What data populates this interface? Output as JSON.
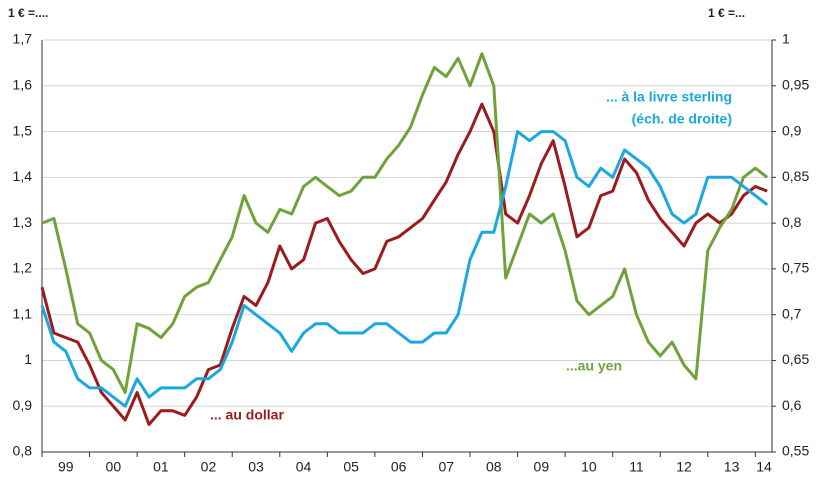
{
  "chart_data": {
    "type": "line",
    "annotations": [
      "1 € =....",
      "1 € =...",
      "(éch. de droite)"
    ],
    "x": [
      1999,
      1999.25,
      1999.5,
      1999.75,
      2000,
      2000.25,
      2000.5,
      2000.75,
      2001,
      2001.25,
      2001.5,
      2001.75,
      2002,
      2002.25,
      2002.5,
      2002.75,
      2003,
      2003.25,
      2003.5,
      2003.75,
      2004,
      2004.25,
      2004.5,
      2004.75,
      2005,
      2005.25,
      2005.5,
      2005.75,
      2006,
      2006.25,
      2006.5,
      2006.75,
      2007,
      2007.25,
      2007.5,
      2007.75,
      2008,
      2008.25,
      2008.5,
      2008.75,
      2009,
      2009.25,
      2009.5,
      2009.75,
      2010,
      2010.25,
      2010.5,
      2010.75,
      2011,
      2011.25,
      2011.5,
      2011.75,
      2012,
      2012.25,
      2012.5,
      2012.75,
      2013,
      2013.25,
      2013.5,
      2013.75,
      2014,
      2014.25
    ],
    "xlim": [
      1999,
      2014.35
    ],
    "xticks": [
      {
        "value": 1999,
        "label": "99"
      },
      {
        "value": 2000,
        "label": "00"
      },
      {
        "value": 2001,
        "label": "01"
      },
      {
        "value": 2002,
        "label": "02"
      },
      {
        "value": 2003,
        "label": "03"
      },
      {
        "value": 2004,
        "label": "04"
      },
      {
        "value": 2005,
        "label": "05"
      },
      {
        "value": 2006,
        "label": "06"
      },
      {
        "value": 2007,
        "label": "07"
      },
      {
        "value": 2008,
        "label": "08"
      },
      {
        "value": 2009,
        "label": "09"
      },
      {
        "value": 2010,
        "label": "10"
      },
      {
        "value": 2011,
        "label": "11"
      },
      {
        "value": 2012,
        "label": "12"
      },
      {
        "value": 2013,
        "label": "13"
      },
      {
        "value": 2014,
        "label": "14"
      }
    ],
    "ylim": [
      0.8,
      1.7
    ],
    "yticks": [
      {
        "value": 0.8,
        "label": "0,8"
      },
      {
        "value": 0.9,
        "label": "0,9"
      },
      1,
      {
        "value": 1.1,
        "label": "1,1"
      },
      {
        "value": 1.2,
        "label": "1,2"
      },
      {
        "value": 1.3,
        "label": "1,3"
      },
      {
        "value": 1.4,
        "label": "1,4"
      },
      {
        "value": 1.5,
        "label": "1,5"
      },
      {
        "value": 1.6,
        "label": "1,6"
      },
      {
        "value": 1.7,
        "label": "1,7"
      }
    ],
    "y2lim": [
      0.55,
      1
    ],
    "y2ticks": [
      {
        "value": 0.55,
        "label": "0,55"
      },
      {
        "value": 0.6,
        "label": "0,6"
      },
      {
        "value": 0.65,
        "label": "0,65"
      },
      {
        "value": 0.7,
        "label": "0,7"
      },
      {
        "value": 0.75,
        "label": "0,75"
      },
      {
        "value": 0.8,
        "label": "0,8"
      },
      {
        "value": 0.85,
        "label": "0,85"
      },
      {
        "value": 0.9,
        "label": "0,9"
      },
      {
        "value": 0.95,
        "label": "0,95"
      },
      1
    ],
    "grid": true,
    "series": [
      {
        "name": "... au dollar",
        "color": "#9b1b1f",
        "values": [
          1.16,
          1.06,
          1.05,
          1.04,
          0.99,
          0.93,
          0.9,
          0.87,
          0.93,
          0.86,
          0.89,
          0.89,
          0.88,
          0.92,
          0.98,
          0.99,
          1.07,
          1.14,
          1.12,
          1.17,
          1.25,
          1.2,
          1.22,
          1.3,
          1.31,
          1.26,
          1.22,
          1.19,
          1.2,
          1.26,
          1.27,
          1.29,
          1.31,
          1.35,
          1.39,
          1.45,
          1.5,
          1.56,
          1.5,
          1.32,
          1.3,
          1.36,
          1.43,
          1.48,
          1.38,
          1.27,
          1.29,
          1.36,
          1.37,
          1.44,
          1.41,
          1.35,
          1.31,
          1.28,
          1.25,
          1.3,
          1.32,
          1.3,
          1.32,
          1.36,
          1.38,
          1.37
        ]
      },
      {
        "name": "...au yen",
        "color": "#6fa33a",
        "values": [
          1.3,
          1.31,
          1.2,
          1.08,
          1.06,
          1.0,
          0.98,
          0.93,
          1.08,
          1.07,
          1.05,
          1.08,
          1.14,
          1.16,
          1.17,
          1.22,
          1.27,
          1.36,
          1.3,
          1.28,
          1.33,
          1.32,
          1.38,
          1.4,
          1.38,
          1.36,
          1.37,
          1.4,
          1.4,
          1.44,
          1.47,
          1.51,
          1.58,
          1.64,
          1.62,
          1.66,
          1.6,
          1.67,
          1.6,
          1.18,
          1.25,
          1.32,
          1.3,
          1.32,
          1.24,
          1.13,
          1.1,
          1.12,
          1.14,
          1.2,
          1.1,
          1.04,
          1.01,
          1.04,
          0.99,
          0.96,
          1.24,
          1.29,
          1.33,
          1.4,
          1.42,
          1.4
        ]
      },
      {
        "name": "... à la livre sterling",
        "color": "#1ba8e0",
        "axis": "y2",
        "values": [
          0.71,
          0.67,
          0.66,
          0.63,
          0.62,
          0.62,
          0.61,
          0.6,
          0.63,
          0.61,
          0.62,
          0.62,
          0.62,
          0.63,
          0.63,
          0.64,
          0.67,
          0.71,
          0.7,
          0.69,
          0.68,
          0.66,
          0.68,
          0.69,
          0.69,
          0.68,
          0.68,
          0.68,
          0.69,
          0.69,
          0.68,
          0.67,
          0.67,
          0.68,
          0.68,
          0.7,
          0.76,
          0.79,
          0.79,
          0.84,
          0.9,
          0.89,
          0.9,
          0.9,
          0.89,
          0.85,
          0.84,
          0.86,
          0.85,
          0.88,
          0.87,
          0.86,
          0.84,
          0.81,
          0.8,
          0.81,
          0.85,
          0.85,
          0.85,
          0.84,
          0.83,
          0.82
        ]
      }
    ]
  }
}
